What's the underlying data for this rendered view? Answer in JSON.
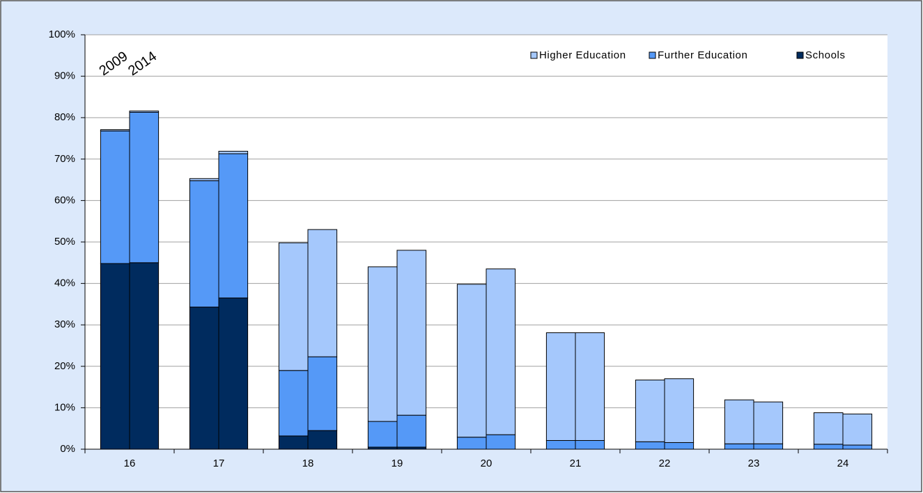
{
  "chart_data": {
    "type": "bar",
    "categories": [
      "16",
      "17",
      "18",
      "19",
      "20",
      "21",
      "22",
      "23",
      "24"
    ],
    "groups": [
      "2009",
      "2014"
    ],
    "series": [
      {
        "name": "Schools",
        "color": "#002b5e",
        "values": [
          [
            44.8,
            45.0
          ],
          [
            34.3,
            36.5
          ],
          [
            3.2,
            4.5
          ],
          [
            0.5,
            0.5
          ],
          [
            0,
            0
          ],
          [
            0,
            0
          ],
          [
            0,
            0
          ],
          [
            0,
            0
          ],
          [
            0,
            0
          ]
        ]
      },
      {
        "name": "Further Education",
        "color": "#5599f7",
        "values": [
          [
            32.0,
            36.3
          ],
          [
            30.5,
            34.8
          ],
          [
            15.8,
            17.8
          ],
          [
            6.2,
            7.7
          ],
          [
            2.9,
            3.5
          ],
          [
            2.1,
            2.1
          ],
          [
            1.8,
            1.6
          ],
          [
            1.3,
            1.3
          ],
          [
            1.2,
            1.0
          ]
        ]
      },
      {
        "name": "Higher Education",
        "color": "#a5c8fc",
        "values": [
          [
            0.3,
            0.3
          ],
          [
            0.5,
            0.6
          ],
          [
            30.8,
            30.7
          ],
          [
            37.3,
            39.8
          ],
          [
            36.9,
            40.0
          ],
          [
            26.0,
            26.0
          ],
          [
            14.9,
            15.4
          ],
          [
            10.6,
            10.1
          ],
          [
            7.6,
            7.5
          ]
        ]
      }
    ],
    "stacked": true,
    "ylim": [
      0,
      100
    ],
    "yticks": [
      {
        "value": 0,
        "label": "0%"
      },
      {
        "value": 10,
        "label": "10%"
      },
      {
        "value": 20,
        "label": "20%"
      },
      {
        "value": 30,
        "label": "30%"
      },
      {
        "value": 40,
        "label": "40%"
      },
      {
        "value": 50,
        "label": "50%"
      },
      {
        "value": 60,
        "label": "60%"
      },
      {
        "value": 70,
        "label": "70%"
      },
      {
        "value": 80,
        "label": "80%"
      },
      {
        "value": 90,
        "label": "90%"
      },
      {
        "value": 100,
        "label": "100%"
      }
    ],
    "grid": true,
    "legend": "top-right"
  }
}
